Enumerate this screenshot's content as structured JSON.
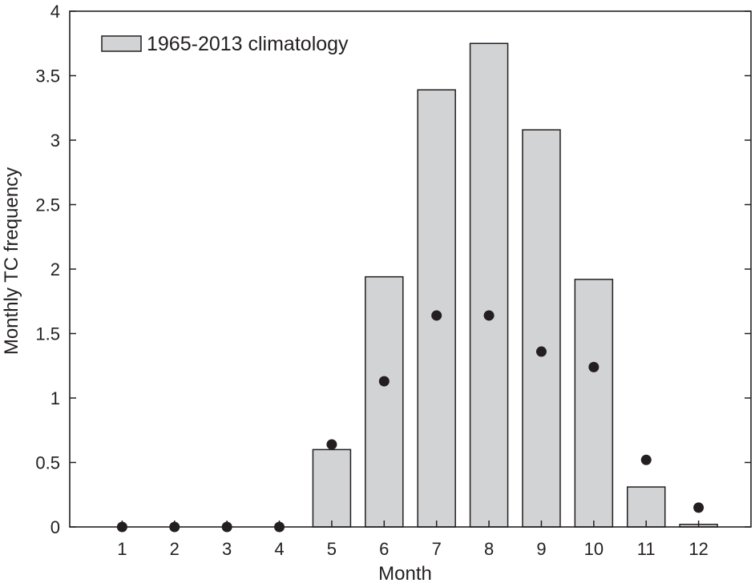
{
  "chart_data": {
    "type": "bar",
    "xlabel": "Month",
    "ylabel": "Monthly TC frequency",
    "ylim": [
      0,
      4
    ],
    "yticks": [
      0,
      0.5,
      1,
      1.5,
      2,
      2.5,
      3,
      3.5,
      4
    ],
    "ytick_labels": [
      "0",
      "0.5",
      "1",
      "1.5",
      "2",
      "2.5",
      "3",
      "3.5",
      "4"
    ],
    "categories": [
      "1",
      "2",
      "3",
      "4",
      "5",
      "6",
      "7",
      "8",
      "9",
      "10",
      "11",
      "12"
    ],
    "x_range": [
      0,
      13
    ],
    "grid": false,
    "legend_position": "top-left",
    "series": [
      {
        "name": "1965-2013 climatology",
        "kind": "bar",
        "color": "#d1d3d4",
        "values": [
          0,
          0,
          0,
          0,
          0.6,
          1.94,
          3.39,
          3.75,
          3.08,
          1.92,
          0.31,
          0.02
        ]
      },
      {
        "kind": "scatter",
        "color": "#231f20",
        "values": [
          0,
          0,
          0,
          0,
          0.64,
          1.13,
          1.64,
          1.64,
          1.36,
          1.24,
          0.52,
          0.15
        ]
      }
    ]
  }
}
